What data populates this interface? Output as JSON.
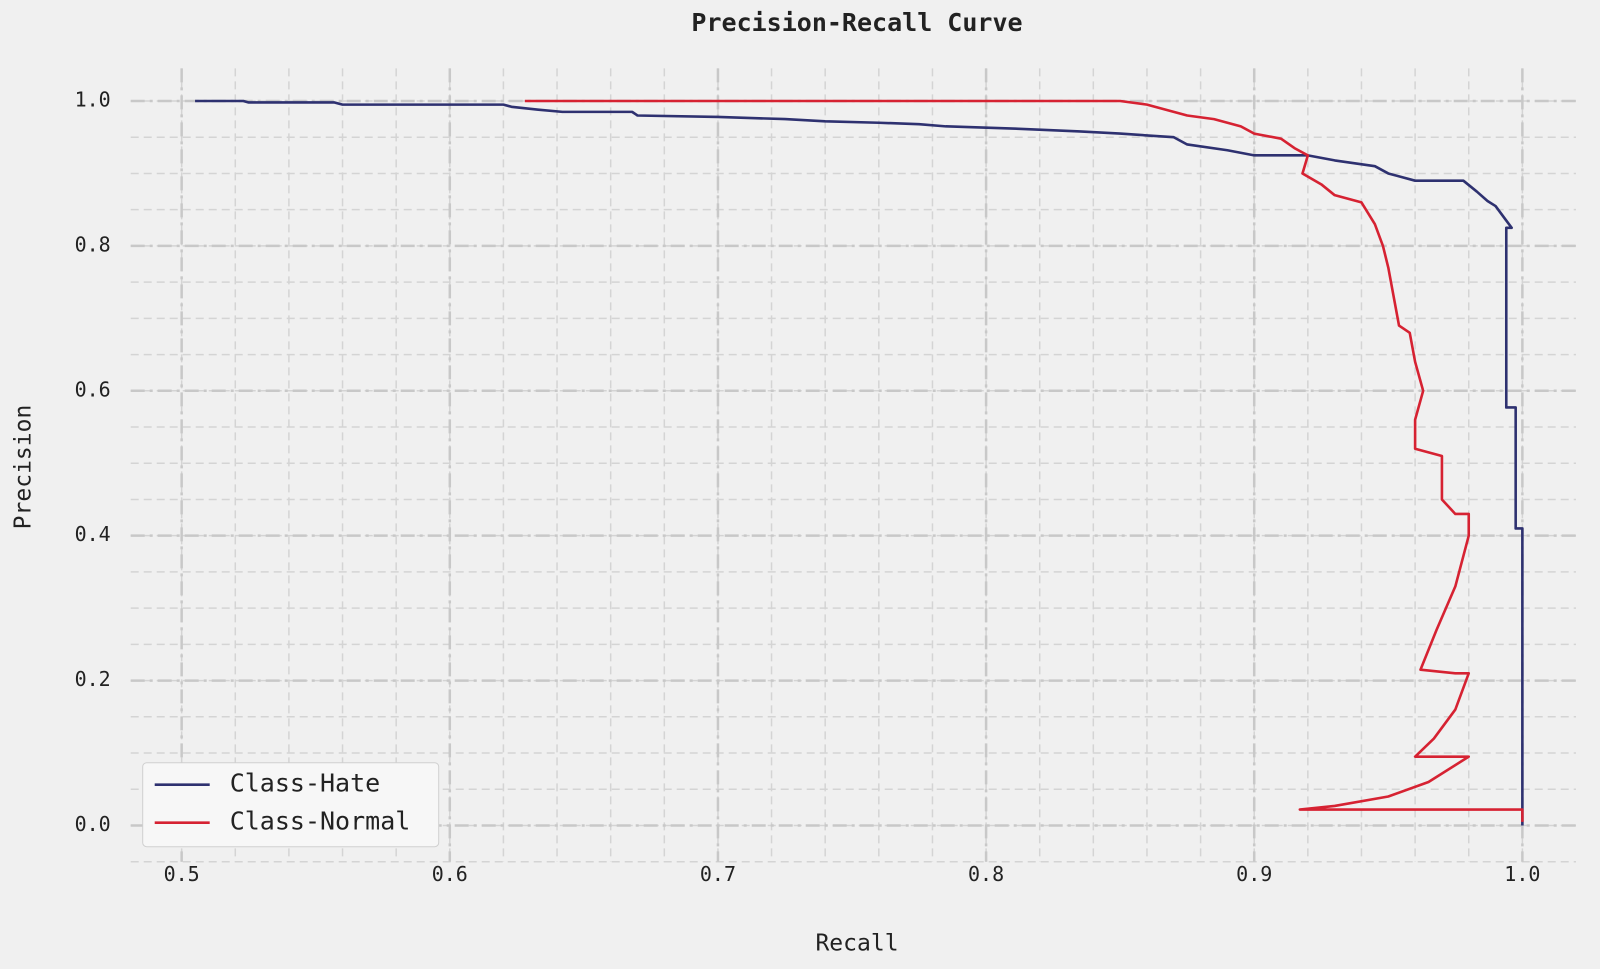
{
  "chart_data": {
    "type": "line",
    "title": "Precision-Recall Curve",
    "x_label": "Recall",
    "y_label": "Precision",
    "xlim": [
      0.481,
      1.02
    ],
    "ylim": [
      -0.05,
      1.045
    ],
    "xticks": [
      0.5,
      0.6,
      0.7,
      0.8,
      0.9,
      {
        "value": 1,
        "label": "1.0"
      }
    ],
    "yticks": [
      {
        "value": 0,
        "label": "0.0"
      },
      0.2,
      0.4,
      0.6,
      0.8,
      {
        "value": 1,
        "label": "1.0"
      }
    ],
    "grid": true,
    "minor_grid": true,
    "legend": "lower left",
    "series": [
      {
        "name": "Class-Hate",
        "color": "#2e3170",
        "x": [
          0.505,
          0.523,
          0.525,
          0.557,
          0.56,
          0.62,
          0.623,
          0.633,
          0.642,
          0.668,
          0.67,
          0.7,
          0.725,
          0.74,
          0.76,
          0.775,
          0.785,
          0.81,
          0.835,
          0.85,
          0.87,
          0.875,
          0.89,
          0.9,
          0.92,
          0.93,
          0.945,
          0.95,
          0.96,
          0.978,
          0.983,
          0.987,
          0.99,
          0.992,
          0.994,
          0.996,
          0.996,
          0.994,
          0.994,
          0.9975,
          0.9975,
          1.0,
          1.0
        ],
        "values": [
          1.0,
          1.0,
          0.998,
          0.998,
          0.995,
          0.995,
          0.992,
          0.988,
          0.985,
          0.985,
          0.98,
          0.978,
          0.975,
          0.972,
          0.97,
          0.968,
          0.965,
          0.962,
          0.958,
          0.955,
          0.95,
          0.94,
          0.932,
          0.925,
          0.925,
          0.918,
          0.91,
          0.9,
          0.89,
          0.89,
          0.875,
          0.862,
          0.855,
          0.845,
          0.835,
          0.825,
          0.825,
          0.825,
          0.577,
          0.577,
          0.41,
          0.41,
          0.0
        ]
      },
      {
        "name": "Class-Normal",
        "color": "#d62232",
        "x": [
          0.628,
          0.85,
          0.86,
          0.865,
          0.875,
          0.885,
          0.895,
          0.9,
          0.91,
          0.915,
          0.92,
          0.918,
          0.925,
          0.93,
          0.94,
          0.945,
          0.948,
          0.95,
          0.952,
          0.954,
          0.958,
          0.96,
          0.963,
          0.96,
          0.96,
          0.97,
          0.97,
          0.975,
          0.98,
          0.98,
          0.975,
          0.968,
          0.962,
          0.975,
          0.98,
          0.975,
          0.967,
          0.96,
          0.98,
          0.965,
          0.95,
          0.93,
          0.917,
          1.0,
          1.0
        ],
        "values": [
          1.0,
          1.0,
          0.995,
          0.99,
          0.98,
          0.975,
          0.965,
          0.955,
          0.948,
          0.935,
          0.925,
          0.9,
          0.885,
          0.87,
          0.86,
          0.83,
          0.8,
          0.77,
          0.73,
          0.69,
          0.68,
          0.64,
          0.6,
          0.56,
          0.52,
          0.51,
          0.45,
          0.43,
          0.43,
          0.4,
          0.33,
          0.27,
          0.215,
          0.21,
          0.21,
          0.16,
          0.12,
          0.095,
          0.095,
          0.06,
          0.04,
          0.027,
          0.022,
          0.022,
          0.005
        ]
      }
    ]
  }
}
